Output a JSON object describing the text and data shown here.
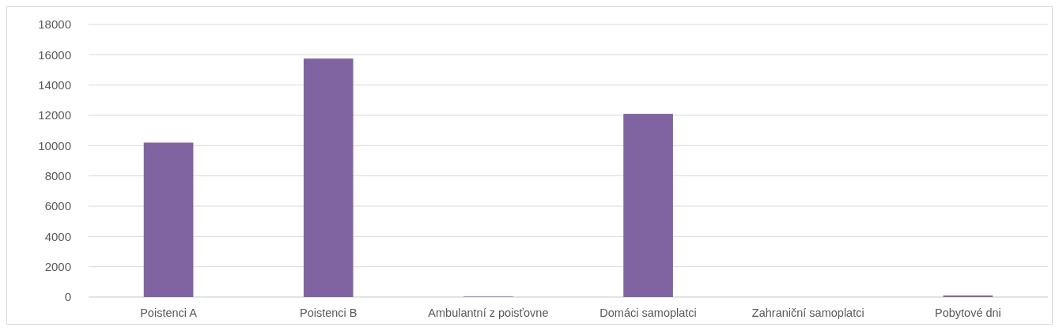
{
  "chart_data": {
    "type": "bar",
    "categories": [
      "Poistenci A",
      "Poistenci B",
      "Ambulantní z poisťovne",
      "Domáci samoplatci",
      "Zahraniční samoplatci",
      "Pobytové dni"
    ],
    "values": [
      10200,
      15750,
      30,
      12100,
      0,
      100
    ],
    "color": "#8064a2",
    "ylim": [
      0,
      18000
    ],
    "yticks": [
      0,
      2000,
      4000,
      6000,
      8000,
      10000,
      12000,
      14000,
      16000,
      18000
    ],
    "grid": "y"
  }
}
